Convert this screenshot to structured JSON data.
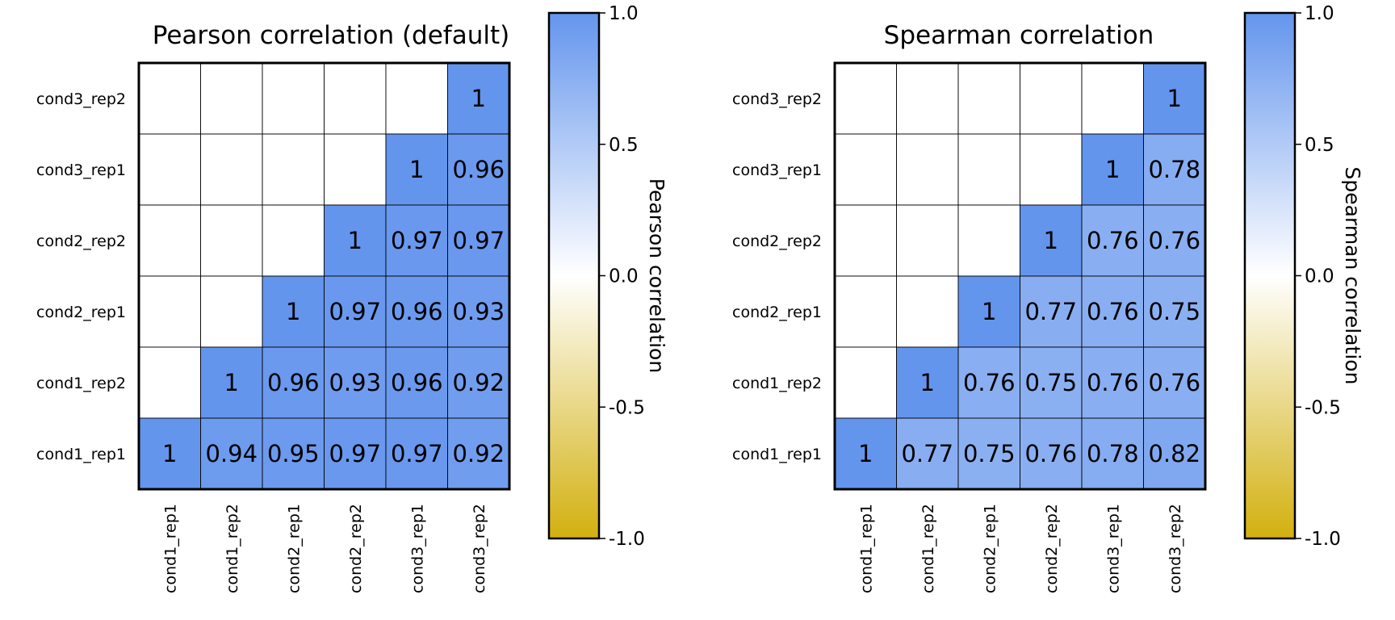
{
  "chart_data": [
    {
      "type": "heatmap",
      "title": "Pearson correlation (default)",
      "row_labels": [
        "cond3_rep2",
        "cond3_rep1",
        "cond2_rep2",
        "cond2_rep1",
        "cond1_rep2",
        "cond1_rep1"
      ],
      "col_labels": [
        "cond1_rep1",
        "cond1_rep2",
        "cond2_rep1",
        "cond2_rep2",
        "cond3_rep1",
        "cond3_rep2"
      ],
      "cells": [
        [
          null,
          null,
          null,
          null,
          null,
          "1"
        ],
        [
          null,
          null,
          null,
          null,
          "1",
          "0.96"
        ],
        [
          null,
          null,
          null,
          "1",
          "0.97",
          "0.97"
        ],
        [
          null,
          null,
          "1",
          "0.97",
          "0.96",
          "0.93"
        ],
        [
          null,
          "1",
          "0.96",
          "0.93",
          "0.96",
          "0.92"
        ],
        [
          "1",
          "0.94",
          "0.95",
          "0.97",
          "0.97",
          "0.92"
        ]
      ],
      "colorbar": {
        "label": "Pearson correlation",
        "ticks": [
          "1.0",
          "0.5",
          "0.0",
          "-0.5",
          "-1.0"
        ],
        "tick_values": [
          1.0,
          0.5,
          0.0,
          -0.5,
          -1.0
        ],
        "range": [
          -1,
          1
        ],
        "colors": {
          "low": "#d2b00f",
          "mid": "#ffffff",
          "high": "#6495ed"
        }
      }
    },
    {
      "type": "heatmap",
      "title": "Spearman correlation",
      "row_labels": [
        "cond3_rep2",
        "cond3_rep1",
        "cond2_rep2",
        "cond2_rep1",
        "cond1_rep2",
        "cond1_rep1"
      ],
      "col_labels": [
        "cond1_rep1",
        "cond1_rep2",
        "cond2_rep1",
        "cond2_rep2",
        "cond3_rep1",
        "cond3_rep2"
      ],
      "cells": [
        [
          null,
          null,
          null,
          null,
          null,
          "1"
        ],
        [
          null,
          null,
          null,
          null,
          "1",
          "0.78"
        ],
        [
          null,
          null,
          null,
          "1",
          "0.76",
          "0.76"
        ],
        [
          null,
          null,
          "1",
          "0.77",
          "0.76",
          "0.75"
        ],
        [
          null,
          "1",
          "0.76",
          "0.75",
          "0.76",
          "0.76"
        ],
        [
          "1",
          "0.77",
          "0.75",
          "0.76",
          "0.78",
          "0.82"
        ]
      ],
      "colorbar": {
        "label": "Spearman correlation",
        "ticks": [
          "1.0",
          "0.5",
          "0.0",
          "-0.5",
          "-1.0"
        ],
        "tick_values": [
          1.0,
          0.5,
          0.0,
          -0.5,
          -1.0
        ],
        "range": [
          -1,
          1
        ],
        "colors": {
          "low": "#d2b00f",
          "mid": "#ffffff",
          "high": "#6495ed"
        }
      }
    }
  ]
}
